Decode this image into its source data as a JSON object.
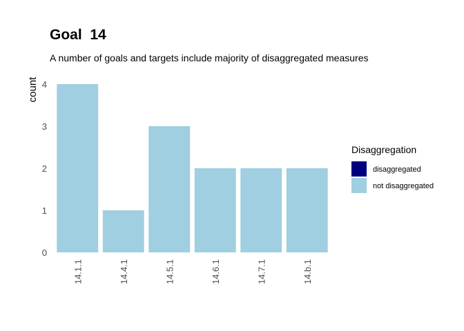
{
  "chart_data": {
    "type": "bar",
    "title": "Goal  14",
    "subtitle": "A number of goals and targets include majority of disaggregated measures",
    "ylabel": "count",
    "xlabel": "",
    "categories": [
      "14.1.1",
      "14.4.1",
      "14.5.1",
      "14.6.1",
      "14.7.1",
      "14.b.1"
    ],
    "series": [
      {
        "name": "disaggregated",
        "color": "#000080",
        "values": [
          0,
          0,
          0,
          0,
          0,
          0
        ]
      },
      {
        "name": "not disaggregated",
        "color": "#9fcfe0",
        "values": [
          4,
          1,
          3,
          2,
          2,
          2
        ]
      }
    ],
    "yticks": [
      0,
      1,
      2,
      3,
      4
    ],
    "ylim": [
      0,
      4
    ],
    "grid": false,
    "legend": {
      "title": "Disaggregation",
      "position": "right"
    }
  }
}
